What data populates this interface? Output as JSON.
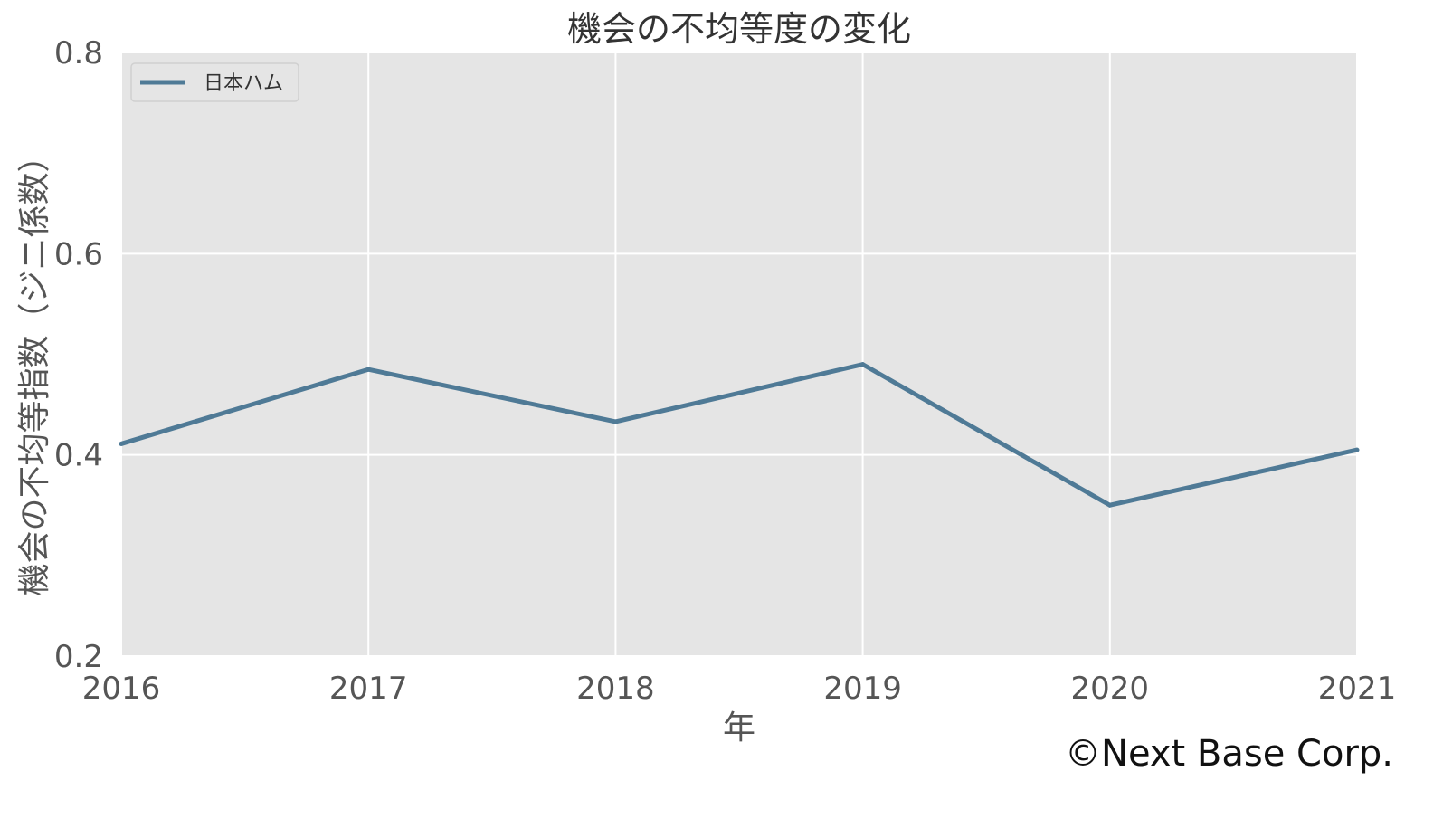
{
  "chart_data": {
    "type": "line",
    "title": "機会の不均等度の変化",
    "xlabel": "年",
    "ylabel": "機会の不均等指数（ジニ係数）",
    "x": [
      2016,
      2017,
      2018,
      2019,
      2020,
      2021
    ],
    "x_tick_labels": [
      "2016",
      "2017",
      "2018",
      "2019",
      "2020",
      "2021"
    ],
    "xlim": [
      2016,
      2021
    ],
    "ylim": [
      0.2,
      0.8
    ],
    "y_ticks": [
      0.2,
      0.4,
      0.6,
      0.8
    ],
    "y_tick_labels": [
      "0.2",
      "0.4",
      "0.6",
      "0.8"
    ],
    "grid": true,
    "legend_position": "top-left",
    "series": [
      {
        "name": "日本ハム",
        "color": "#4f7a96",
        "values": [
          0.411,
          0.485,
          0.433,
          0.49,
          0.35,
          0.405
        ]
      }
    ]
  },
  "plot_background": "#e5e5e5",
  "copyright": "©Next Base Corp."
}
